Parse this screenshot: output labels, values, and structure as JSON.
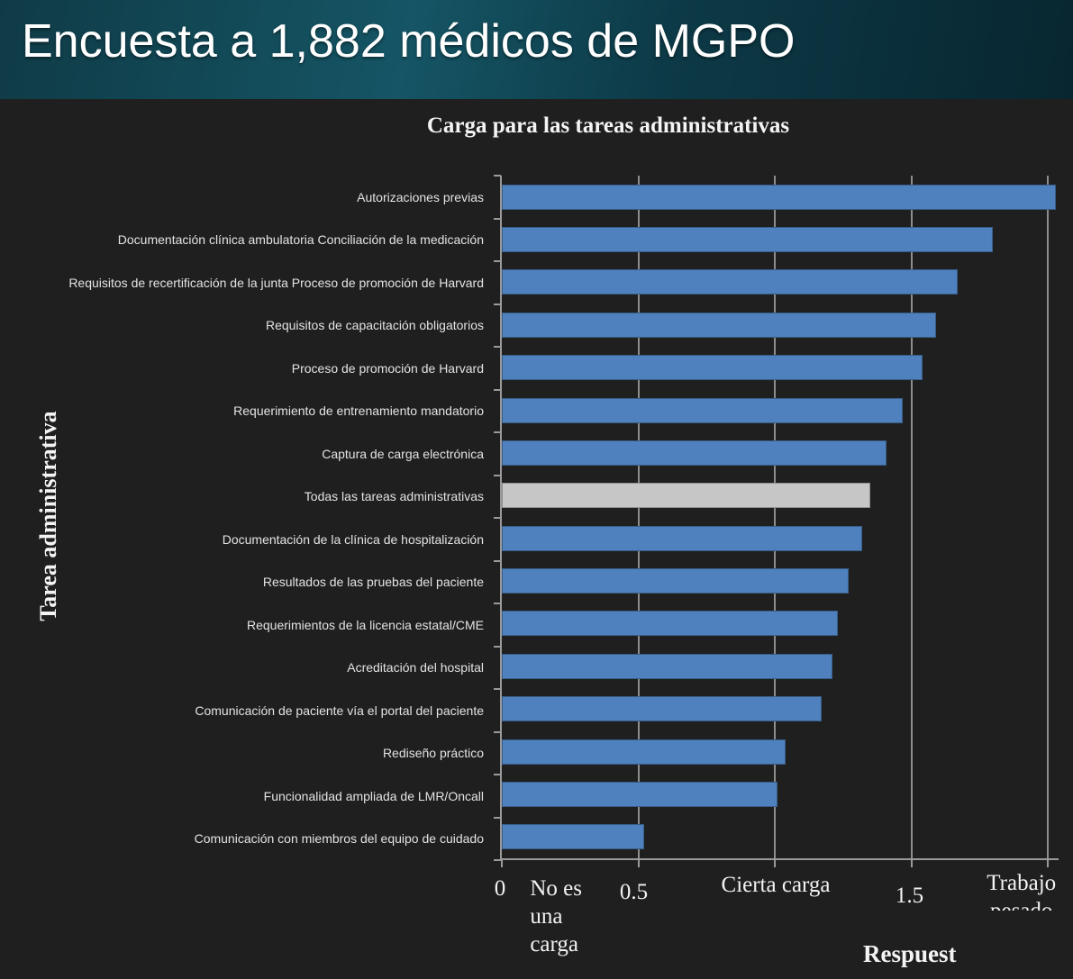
{
  "header": {
    "title": "Encuesta a 1,882 médicos de MGPO"
  },
  "chart_data": {
    "type": "bar",
    "orientation": "horizontal",
    "title": "Carga para las tareas administrativas",
    "xlabel": "Respuest",
    "ylabel": "Tarea administrativa",
    "categories": [
      "Autorizaciones previas",
      "Documentación clínica ambulatoria Conciliación de la medicación",
      "Requisitos de recertificación de la junta Proceso de promoción de Harvard",
      "Requisitos de capacitación obligatorios",
      "Proceso de promoción de Harvard",
      "Requerimiento de entrenamiento mandatorio",
      "Captura de carga electrónica",
      "Todas las tareas administrativas",
      "Documentación de la clínica de hospitalización",
      "Resultados de las pruebas del paciente",
      "Requerimientos de la licencia estatal/CME",
      "Acreditación del hospital",
      "Comunicación de paciente vía el portal del paciente",
      "Rediseño práctico",
      "Funcionalidad ampliada de LMR/Oncall",
      "Comunicación con miembros del equipo de cuidado"
    ],
    "values": [
      2.03,
      1.8,
      1.67,
      1.59,
      1.54,
      1.47,
      1.41,
      1.35,
      1.32,
      1.27,
      1.23,
      1.21,
      1.17,
      1.04,
      1.01,
      0.52
    ],
    "highlight_index": 7,
    "colors": {
      "bar": "#4E81BD",
      "highlight_bar": "#C6C6C6"
    },
    "xlim": [
      0,
      2.05
    ],
    "grid": true,
    "grid_x_values": [
      0.5,
      1.0,
      1.5,
      2.0
    ],
    "x_tick_values": [
      0,
      0.5,
      1.0,
      1.5,
      2.0
    ],
    "x_tick_labels": [
      {
        "text": "0",
        "x": 0,
        "anchor": "center"
      },
      {
        "text": "No es una carga",
        "x": 0.11,
        "anchor": "left"
      },
      {
        "text": "0.5",
        "x": 0.49,
        "anchor": "center"
      },
      {
        "text": "Cierta carga",
        "x": 1.01,
        "anchor": "center"
      },
      {
        "text": "1.5",
        "x": 1.5,
        "anchor": "center"
      },
      {
        "text": "Trabajo pesado",
        "x": 1.91,
        "anchor": "center"
      }
    ]
  }
}
